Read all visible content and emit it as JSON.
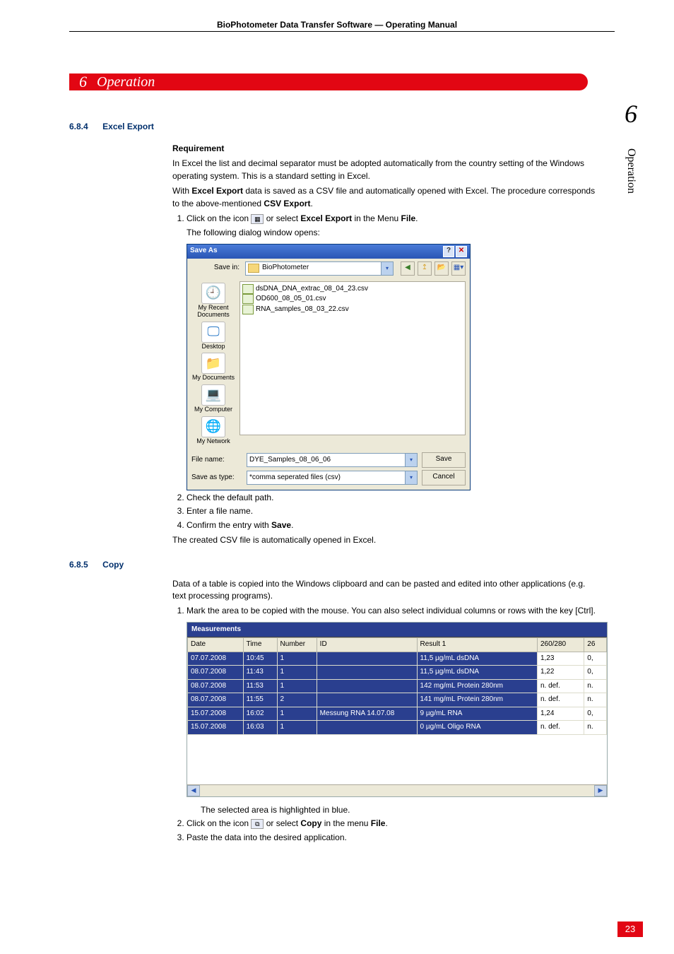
{
  "header": "BioPhotometer Data Transfer Software  —  Operating Manual",
  "chapter": {
    "num": "6",
    "title": "Operation"
  },
  "big_section_number": "6",
  "side_tab": "Operation",
  "page_number": "23",
  "sec684": {
    "num": "6.8.4",
    "title": "Excel Export",
    "subhead": "Requirement",
    "req1": "In Excel the list and decimal separator must be adopted automatically from the country setting of the Windows operating system. This is a standard setting in Excel.",
    "with1": "With ",
    "kw_excel_export": "Excel Export",
    "with2": " data is saved as a CSV file and automatically opened with Excel. The procedure corresponds to the above-mentioned ",
    "kw_csv_export": "CSV Export",
    "with3": ".",
    "step1a": "Click on the icon ",
    "step1b": " or select ",
    "step1c": " in the Menu ",
    "kw_file": "File",
    "step1d": ".",
    "step1e": "The following dialog window opens:",
    "step2": "Check the default path.",
    "step3": "Enter a file name.",
    "step4a": "Confirm the entry with ",
    "kw_save": "Save",
    "step4b": ".",
    "after": "The created CSV file is automatically opened in Excel."
  },
  "saveas": {
    "title": "Save As",
    "save_in_label": "Save in:",
    "save_in_value": "BioPhotometer",
    "files": [
      "dsDNA_DNA_extrac_08_04_23.csv",
      "OD600_08_05_01.csv",
      "RNA_samples_08_03_22.csv"
    ],
    "places": [
      {
        "icon": "🕘",
        "label": "My Recent Documents"
      },
      {
        "icon": "🖵",
        "label": "Desktop"
      },
      {
        "icon": "📁",
        "label": "My Documents"
      },
      {
        "icon": "💻",
        "label": "My Computer"
      },
      {
        "icon": "🌐",
        "label": "My Network"
      }
    ],
    "filename_label": "File name:",
    "filename_value": "DYE_Samples_08_06_06",
    "saveastype_label": "Save as type:",
    "saveastype_value": "*comma seperated files (csv)",
    "btn_save": "Save",
    "btn_cancel": "Cancel",
    "toolbar_icons": [
      "◀",
      "↥",
      "📂",
      "▦▾"
    ]
  },
  "sec685": {
    "num": "6.8.5",
    "title": "Copy",
    "intro": "Data of a table is copied into the Windows clipboard and can be pasted and edited into other applications (e.g. text processing programs).",
    "step1": "Mark the area to be copied with the mouse. You can also select individual columns or rows with the key [Ctrl].",
    "after1": "The selected area is highlighted in blue.",
    "step2a": "Click on the icon ",
    "step2b": " or select ",
    "kw_copy": "Copy",
    "step2c": " in the menu ",
    "kw_file": "File",
    "step2d": ".",
    "step3": "Paste the data into the desired application."
  },
  "meas": {
    "title": "Measurements",
    "cols": [
      "Date",
      "Time",
      "Number",
      "ID",
      "Result 1",
      "260/280",
      "26"
    ],
    "rows": [
      [
        "07.07.2008",
        "10:45",
        "1",
        "",
        "11,5 µg/mL dsDNA",
        "1,23",
        "0,"
      ],
      [
        "08.07.2008",
        "11:43",
        "1",
        "",
        "11,5 µg/mL dsDNA",
        "1,22",
        "0,"
      ],
      [
        "08.07.2008",
        "11:53",
        "1",
        "",
        "142 mg/mL Protein 280nm",
        "n. def.",
        "n."
      ],
      [
        "08.07.2008",
        "11:55",
        "2",
        "",
        "141 mg/mL Protein 280nm",
        "n. def.",
        "n."
      ],
      [
        "15.07.2008",
        "16:02",
        "1",
        "Messung RNA 14.07.08",
        "9 µg/mL RNA",
        "1,24",
        "0,"
      ],
      [
        "15.07.2008",
        "16:03",
        "1",
        "",
        "0 µg/mL Oligo RNA",
        "n. def.",
        "n."
      ]
    ],
    "col_widths": [
      "68px",
      "38px",
      "46px",
      "130px",
      "158px",
      "56px",
      "22px"
    ],
    "selected_cols": [
      0,
      1,
      2,
      3,
      4
    ]
  }
}
